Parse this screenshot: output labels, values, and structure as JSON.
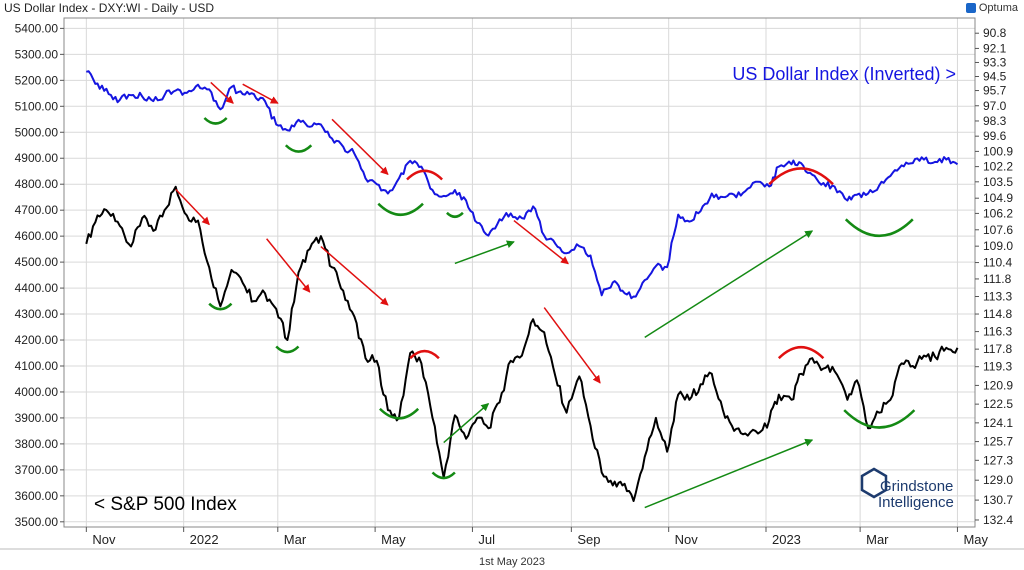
{
  "header": {
    "title": "US Dollar Index - DXY:WI - Daily - USD",
    "brand": "Optuma"
  },
  "footer": {
    "date": "1st May 2023"
  },
  "watermark": {
    "line1": "Grindstone",
    "line2": "Intelligence"
  },
  "colors": {
    "spx": "#000000",
    "dxy": "#1515e0",
    "down_arrow": "#e01010",
    "up_arrow": "#148a14",
    "bottom_arc": "#148a14",
    "top_arc": "#e01010",
    "grid": "#d9d9d9"
  },
  "chart_data": {
    "type": "line",
    "x_axis": {
      "tick_labels": [
        "Nov",
        "2022",
        "Mar",
        "May",
        "Jul",
        "Sep",
        "Nov",
        "2023",
        "Mar",
        "May"
      ]
    },
    "left_axis": {
      "ylim": [
        3480,
        5440
      ],
      "ticks": [
        "5400.00",
        "5300.00",
        "5200.00",
        "5100.00",
        "5000.00",
        "4900.00",
        "4800.00",
        "4700.00",
        "4600.00",
        "4500.00",
        "4400.00",
        "4300.00",
        "4200.00",
        "4100.00",
        "4000.00",
        "3900.00",
        "3800.00",
        "3700.00",
        "3600.00",
        "3500.00"
      ]
    },
    "right_axis": {
      "inverted": true,
      "ylim": [
        89.5,
        133.0
      ],
      "ticks": [
        "90.8",
        "92.1",
        "93.3",
        "94.5",
        "95.7",
        "97.0",
        "98.3",
        "99.6",
        "100.9",
        "102.2",
        "103.5",
        "104.9",
        "106.2",
        "107.6",
        "109.0",
        "110.4",
        "111.8",
        "113.3",
        "114.8",
        "116.3",
        "117.8",
        "119.3",
        "120.9",
        "122.5",
        "124.1",
        "125.7",
        "127.3",
        "129.0",
        "130.7",
        "132.4"
      ]
    },
    "annotations": {
      "dxy_label": "US Dollar Index (Inverted) >",
      "spx_label": "< S&P 500 Index"
    },
    "series": [
      {
        "name": "S&P 500 Index",
        "axis": "left",
        "points": [
          [
            "2021-11-01",
            4570
          ],
          [
            "2021-11-08",
            4680
          ],
          [
            "2021-11-15",
            4690
          ],
          [
            "2021-11-22",
            4640
          ],
          [
            "2021-11-29",
            4560
          ],
          [
            "2021-12-06",
            4670
          ],
          [
            "2021-12-13",
            4620
          ],
          [
            "2021-12-20",
            4700
          ],
          [
            "2021-12-27",
            4790
          ],
          [
            "2022-01-03",
            4680
          ],
          [
            "2022-01-10",
            4660
          ],
          [
            "2022-01-17",
            4480
          ],
          [
            "2022-01-24",
            4330
          ],
          [
            "2022-01-31",
            4470
          ],
          [
            "2022-02-07",
            4420
          ],
          [
            "2022-02-14",
            4350
          ],
          [
            "2022-02-21",
            4380
          ],
          [
            "2022-02-28",
            4320
          ],
          [
            "2022-03-07",
            4200
          ],
          [
            "2022-03-14",
            4460
          ],
          [
            "2022-03-21",
            4550
          ],
          [
            "2022-03-28",
            4600
          ],
          [
            "2022-04-04",
            4480
          ],
          [
            "2022-04-11",
            4390
          ],
          [
            "2022-04-18",
            4290
          ],
          [
            "2022-04-25",
            4130
          ],
          [
            "2022-05-02",
            4120
          ],
          [
            "2022-05-09",
            3930
          ],
          [
            "2022-05-16",
            3900
          ],
          [
            "2022-05-23",
            4150
          ],
          [
            "2022-05-30",
            4110
          ],
          [
            "2022-06-06",
            3900
          ],
          [
            "2022-06-13",
            3670
          ],
          [
            "2022-06-20",
            3910
          ],
          [
            "2022-06-27",
            3820
          ],
          [
            "2022-07-04",
            3900
          ],
          [
            "2022-07-11",
            3860
          ],
          [
            "2022-07-18",
            3960
          ],
          [
            "2022-07-25",
            4120
          ],
          [
            "2022-08-01",
            4140
          ],
          [
            "2022-08-08",
            4280
          ],
          [
            "2022-08-15",
            4230
          ],
          [
            "2022-08-22",
            4060
          ],
          [
            "2022-08-29",
            3920
          ],
          [
            "2022-09-06",
            4060
          ],
          [
            "2022-09-13",
            3870
          ],
          [
            "2022-09-20",
            3690
          ],
          [
            "2022-09-27",
            3640
          ],
          [
            "2022-10-03",
            3640
          ],
          [
            "2022-10-10",
            3580
          ],
          [
            "2022-10-17",
            3750
          ],
          [
            "2022-10-24",
            3900
          ],
          [
            "2022-10-31",
            3770
          ],
          [
            "2022-11-07",
            3990
          ],
          [
            "2022-11-14",
            3970
          ],
          [
            "2022-11-21",
            4030
          ],
          [
            "2022-11-28",
            4070
          ],
          [
            "2022-12-05",
            3930
          ],
          [
            "2022-12-12",
            3850
          ],
          [
            "2022-12-19",
            3840
          ],
          [
            "2022-12-27",
            3840
          ],
          [
            "2023-01-03",
            3890
          ],
          [
            "2023-01-09",
            3990
          ],
          [
            "2023-01-17",
            3970
          ],
          [
            "2023-01-23",
            4070
          ],
          [
            "2023-01-30",
            4130
          ],
          [
            "2023-02-06",
            4090
          ],
          [
            "2023-02-13",
            4080
          ],
          [
            "2023-02-21",
            3970
          ],
          [
            "2023-02-27",
            4045
          ],
          [
            "2023-03-06",
            3860
          ],
          [
            "2023-03-13",
            3920
          ],
          [
            "2023-03-20",
            3970
          ],
          [
            "2023-03-27",
            4110
          ],
          [
            "2023-04-03",
            4100
          ],
          [
            "2023-04-10",
            4140
          ],
          [
            "2023-04-17",
            4135
          ],
          [
            "2023-04-24",
            4170
          ],
          [
            "2023-05-01",
            4170
          ]
        ]
      },
      {
        "name": "US Dollar Index (Inverted)",
        "axis": "right",
        "points": [
          [
            "2021-11-01",
            94.1
          ],
          [
            "2021-11-08",
            95.1
          ],
          [
            "2021-11-15",
            96.0
          ],
          [
            "2021-11-22",
            96.5
          ],
          [
            "2021-11-29",
            96.1
          ],
          [
            "2021-12-06",
            96.2
          ],
          [
            "2021-12-13",
            96.6
          ],
          [
            "2021-12-20",
            96.1
          ],
          [
            "2021-12-27",
            95.7
          ],
          [
            "2022-01-03",
            95.9
          ],
          [
            "2022-01-10",
            95.2
          ],
          [
            "2022-01-17",
            95.6
          ],
          [
            "2022-01-24",
            97.3
          ],
          [
            "2022-01-31",
            95.4
          ],
          [
            "2022-02-07",
            96.0
          ],
          [
            "2022-02-14",
            96.0
          ],
          [
            "2022-02-21",
            96.6
          ],
          [
            "2022-02-28",
            98.6
          ],
          [
            "2022-03-07",
            99.1
          ],
          [
            "2022-03-14",
            98.2
          ],
          [
            "2022-03-21",
            98.8
          ],
          [
            "2022-03-28",
            98.6
          ],
          [
            "2022-04-04",
            99.8
          ],
          [
            "2022-04-11",
            100.5
          ],
          [
            "2022-04-18",
            101.1
          ],
          [
            "2022-04-25",
            103.2
          ],
          [
            "2022-05-02",
            103.7
          ],
          [
            "2022-05-09",
            104.5
          ],
          [
            "2022-05-16",
            103.2
          ],
          [
            "2022-05-23",
            101.7
          ],
          [
            "2022-05-30",
            102.2
          ],
          [
            "2022-06-06",
            104.2
          ],
          [
            "2022-06-13",
            104.7
          ],
          [
            "2022-06-20",
            104.2
          ],
          [
            "2022-06-27",
            105.1
          ],
          [
            "2022-07-04",
            107.0
          ],
          [
            "2022-07-11",
            108.1
          ],
          [
            "2022-07-18",
            106.7
          ],
          [
            "2022-07-25",
            106.2
          ],
          [
            "2022-08-01",
            106.6
          ],
          [
            "2022-08-08",
            105.6
          ],
          [
            "2022-08-15",
            108.1
          ],
          [
            "2022-08-22",
            108.8
          ],
          [
            "2022-08-29",
            109.6
          ],
          [
            "2022-09-06",
            109.0
          ],
          [
            "2022-09-13",
            109.8
          ],
          [
            "2022-09-20",
            113.2
          ],
          [
            "2022-09-27",
            112.1
          ],
          [
            "2022-10-03",
            112.8
          ],
          [
            "2022-10-10",
            113.3
          ],
          [
            "2022-10-17",
            111.9
          ],
          [
            "2022-10-24",
            110.7
          ],
          [
            "2022-10-31",
            110.8
          ],
          [
            "2022-11-07",
            106.3
          ],
          [
            "2022-11-14",
            106.9
          ],
          [
            "2022-11-21",
            106.0
          ],
          [
            "2022-11-28",
            104.5
          ],
          [
            "2022-12-05",
            104.8
          ],
          [
            "2022-12-12",
            104.6
          ],
          [
            "2022-12-19",
            104.3
          ],
          [
            "2022-12-27",
            103.5
          ],
          [
            "2023-01-03",
            103.9
          ],
          [
            "2023-01-09",
            102.2
          ],
          [
            "2023-01-17",
            102.0
          ],
          [
            "2023-01-23",
            101.9
          ],
          [
            "2023-01-30",
            102.9
          ],
          [
            "2023-02-06",
            103.6
          ],
          [
            "2023-02-13",
            103.9
          ],
          [
            "2023-02-21",
            105.1
          ],
          [
            "2023-02-27",
            104.6
          ],
          [
            "2023-03-06",
            104.5
          ],
          [
            "2023-03-13",
            103.8
          ],
          [
            "2023-03-20",
            103.0
          ],
          [
            "2023-03-27",
            102.1
          ],
          [
            "2023-04-03",
            101.9
          ],
          [
            "2023-04-10",
            101.6
          ],
          [
            "2023-04-17",
            101.8
          ],
          [
            "2023-04-24",
            101.6
          ],
          [
            "2023-05-01",
            102.0
          ]
        ]
      }
    ],
    "arrows": [
      {
        "kind": "down",
        "from": [
          "2022-01-18",
          5192
        ],
        "to": [
          "2022-02-01",
          5112
        ]
      },
      {
        "kind": "down",
        "from": [
          "2022-02-07",
          5185
        ],
        "to": [
          "2022-03-01",
          5112
        ]
      },
      {
        "kind": "down",
        "from": [
          "2022-04-04",
          5050
        ],
        "to": [
          "2022-05-09",
          4838
        ]
      },
      {
        "kind": "down",
        "from": [
          "2022-07-27",
          4660
        ],
        "to": [
          "2022-08-30",
          4494
        ]
      },
      {
        "kind": "down",
        "from": [
          "2021-12-27",
          4780
        ],
        "to": [
          "2022-01-17",
          4645
        ]
      },
      {
        "kind": "down",
        "from": [
          "2022-02-22",
          4590
        ],
        "to": [
          "2022-03-21",
          4385
        ]
      },
      {
        "kind": "down",
        "from": [
          "2022-03-28",
          4560
        ],
        "to": [
          "2022-05-09",
          4335
        ]
      },
      {
        "kind": "down",
        "from": [
          "2022-08-15",
          4325
        ],
        "to": [
          "2022-09-19",
          4035
        ]
      },
      {
        "kind": "up",
        "from": [
          "2022-06-20",
          4495
        ],
        "to": [
          "2022-07-27",
          4578
        ]
      },
      {
        "kind": "up",
        "from": [
          "2022-10-17",
          4210
        ],
        "to": [
          "2023-01-30",
          4620
        ]
      },
      {
        "kind": "up",
        "from": [
          "2022-06-13",
          3805
        ],
        "to": [
          "2022-07-11",
          3955
        ]
      },
      {
        "kind": "up",
        "from": [
          "2022-10-17",
          3555
        ],
        "to": [
          "2023-01-30",
          3815
        ]
      }
    ],
    "arcs": [
      {
        "kind": "bottom",
        "at": [
          "2022-01-21",
          5055
        ],
        "width_days": 14
      },
      {
        "kind": "bottom",
        "at": [
          "2022-03-14",
          4950
        ],
        "width_days": 16
      },
      {
        "kind": "bottom",
        "at": [
          "2022-05-17",
          4725
        ],
        "width_days": 28
      },
      {
        "kind": "bottom",
        "at": [
          "2022-06-20",
          4690
        ],
        "width_days": 10
      },
      {
        "kind": "bottom",
        "at": [
          "2023-03-13",
          4665
        ],
        "width_days": 42
      },
      {
        "kind": "top",
        "at": [
          "2022-06-01",
          4818
        ],
        "width_days": 22
      },
      {
        "kind": "top",
        "at": [
          "2023-01-23",
          4800
        ],
        "width_days": 40
      },
      {
        "kind": "bottom",
        "at": [
          "2022-01-24",
          4340
        ],
        "width_days": 14
      },
      {
        "kind": "bottom",
        "at": [
          "2022-03-07",
          4175
        ],
        "width_days": 14
      },
      {
        "kind": "bottom",
        "at": [
          "2022-05-16",
          3935
        ],
        "width_days": 24
      },
      {
        "kind": "bottom",
        "at": [
          "2022-06-13",
          3690
        ],
        "width_days": 14
      },
      {
        "kind": "bottom",
        "at": [
          "2023-03-13",
          3930
        ],
        "width_days": 44
      },
      {
        "kind": "top",
        "at": [
          "2022-06-01",
          4130
        ],
        "width_days": 18
      },
      {
        "kind": "top",
        "at": [
          "2023-01-23",
          4130
        ],
        "width_days": 28
      }
    ]
  }
}
